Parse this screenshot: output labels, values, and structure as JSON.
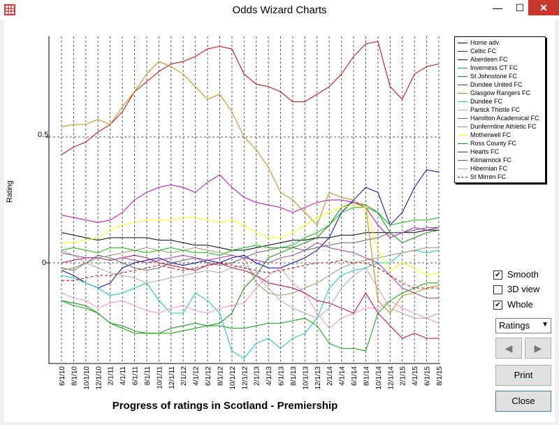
{
  "window": {
    "title": "Odds Wizard Charts",
    "min_glyph": "—",
    "max_glyph": "☐",
    "close_glyph": "✕"
  },
  "chart_data": {
    "type": "line",
    "title": "Progress of ratings in Scotland - Premiership",
    "ylabel": "Rating",
    "xlabel": "",
    "ylim": [
      -0.4,
      0.9
    ],
    "y_tick_labels": [
      "0.5",
      "0"
    ],
    "y_ticks": [
      0.5,
      0
    ],
    "x": [
      "6/1/10",
      "8/1/10",
      "10/1/10",
      "12/1/10",
      "2/1/11",
      "4/1/11",
      "6/1/11",
      "8/1/11",
      "10/1/11",
      "12/1/11",
      "2/1/12",
      "4/1/12",
      "6/1/12",
      "8/1/12",
      "10/1/12",
      "12/1/12",
      "2/1/13",
      "4/1/13",
      "6/1/13",
      "8/1/13",
      "10/1/13",
      "12/1/13",
      "2/1/14",
      "4/1/14",
      "6/1/14",
      "8/1/14",
      "10/1/14",
      "12/1/14",
      "2/1/15",
      "4/1/15",
      "6/1/15",
      "8/1/15"
    ],
    "grid": true,
    "legend_position": "top-right",
    "series": [
      {
        "name": "Home adv.",
        "color": "#000000",
        "dash": false,
        "values": [
          0.12,
          0.11,
          0.1,
          0.09,
          0.1,
          0.1,
          0.1,
          0.1,
          0.09,
          0.09,
          0.08,
          0.07,
          0.07,
          0.06,
          0.05,
          0.05,
          0.06,
          0.07,
          0.08,
          0.09,
          0.09,
          0.1,
          0.1,
          0.11,
          0.11,
          0.12,
          0.12,
          0.12,
          0.12,
          0.12,
          0.13,
          0.13
        ]
      },
      {
        "name": "Celtic FC",
        "color": "#cc0000",
        "dash": false,
        "values": [
          0.43,
          0.46,
          0.48,
          0.52,
          0.55,
          0.6,
          0.68,
          0.72,
          0.76,
          0.79,
          0.8,
          0.82,
          0.85,
          0.86,
          0.85,
          0.75,
          0.71,
          0.7,
          0.68,
          0.64,
          0.64,
          0.67,
          0.7,
          0.75,
          0.82,
          0.87,
          0.88,
          0.7,
          0.65,
          0.75,
          0.78,
          0.79
        ]
      },
      {
        "name": "Aberdeen FC",
        "color": "#0000cc",
        "dash": false,
        "values": [
          -0.03,
          -0.05,
          -0.08,
          -0.1,
          -0.08,
          -0.02,
          0.0,
          0.01,
          0.02,
          0.0,
          -0.01,
          0.0,
          0.01,
          0.0,
          0.02,
          0.03,
          0.0,
          -0.02,
          -0.02,
          0.0,
          0.02,
          0.05,
          0.1,
          0.2,
          0.25,
          0.3,
          0.28,
          0.15,
          0.2,
          0.3,
          0.37,
          0.36
        ]
      },
      {
        "name": "Inverness CT FC",
        "color": "#00cc00",
        "dash": false,
        "values": [
          0.05,
          0.06,
          0.05,
          0.04,
          0.06,
          0.06,
          0.05,
          0.04,
          0.05,
          0.06,
          0.05,
          0.04,
          0.04,
          0.03,
          0.05,
          0.06,
          0.07,
          0.06,
          0.06,
          0.07,
          0.1,
          0.12,
          0.15,
          0.2,
          0.22,
          0.22,
          0.2,
          0.15,
          0.16,
          0.17,
          0.17,
          0.18
        ]
      },
      {
        "name": "St Johnstone FC",
        "color": "#009900",
        "dash": false,
        "values": [
          -0.15,
          -0.16,
          -0.17,
          -0.2,
          -0.24,
          -0.26,
          -0.28,
          -0.28,
          -0.28,
          -0.26,
          -0.25,
          -0.24,
          -0.25,
          -0.24,
          -0.2,
          -0.1,
          -0.05,
          0.02,
          0.04,
          0.06,
          0.08,
          0.1,
          0.15,
          0.22,
          0.24,
          0.23,
          0.2,
          0.12,
          0.08,
          0.1,
          0.12,
          0.13
        ]
      },
      {
        "name": "Dundee United FC",
        "color": "#cc00cc",
        "dash": false,
        "values": [
          0.19,
          0.18,
          0.17,
          0.16,
          0.17,
          0.2,
          0.25,
          0.28,
          0.3,
          0.31,
          0.3,
          0.28,
          0.32,
          0.35,
          0.3,
          0.26,
          0.24,
          0.23,
          0.22,
          0.2,
          0.22,
          0.24,
          0.25,
          0.25,
          0.24,
          0.22,
          0.15,
          0.1,
          0.12,
          0.14,
          0.13,
          0.14
        ]
      },
      {
        "name": "Glasgow Rangers FC",
        "color": "#cc8800",
        "dash": false,
        "values": [
          0.54,
          0.55,
          0.55,
          0.57,
          0.55,
          0.62,
          0.68,
          0.75,
          0.8,
          0.78,
          0.75,
          0.7,
          0.65,
          0.67,
          0.6,
          0.5,
          0.45,
          0.38,
          0.28,
          0.25,
          0.2,
          0.15,
          0.28,
          0.26,
          0.25,
          0.22,
          -0.15,
          -0.2,
          -0.13,
          -0.12,
          -0.1,
          -0.09
        ]
      },
      {
        "name": "Dundee FC",
        "color": "#00cccc",
        "dash": false,
        "values": [
          -0.05,
          -0.06,
          -0.08,
          -0.1,
          -0.13,
          -0.12,
          -0.1,
          -0.08,
          -0.15,
          -0.2,
          -0.2,
          -0.12,
          -0.15,
          -0.2,
          -0.35,
          -0.38,
          -0.32,
          -0.3,
          -0.34,
          -0.3,
          -0.28,
          -0.22,
          -0.1,
          -0.05,
          -0.03,
          -0.02,
          0.0,
          0.0,
          0.04,
          0.05,
          0.04,
          0.05
        ]
      },
      {
        "name": "Partick Thistle FC",
        "color": "#ff88cc",
        "dash": false,
        "values": [
          -0.12,
          -0.14,
          -0.15,
          -0.18,
          -0.16,
          -0.15,
          -0.17,
          -0.19,
          -0.2,
          -0.18,
          -0.17,
          -0.19,
          -0.2,
          -0.18,
          -0.17,
          -0.16,
          -0.1,
          -0.05,
          -0.02,
          -0.08,
          -0.12,
          -0.2,
          -0.26,
          -0.22,
          -0.2,
          -0.18,
          -0.18,
          -0.15,
          -0.18,
          -0.2,
          -0.22,
          -0.24
        ]
      },
      {
        "name": "Hamilton Academical FC",
        "color": "#666666",
        "dash": false,
        "values": [
          -0.02,
          -0.03,
          0.0,
          0.03,
          0.02,
          0.0,
          -0.02,
          -0.03,
          -0.02,
          0.0,
          0.01,
          0.02,
          0.0,
          -0.01,
          0.0,
          0.02,
          0.04,
          0.05,
          0.06,
          0.06,
          0.05,
          0.06,
          0.07,
          0.08,
          0.08,
          0.09,
          0.1,
          0.12,
          0.12,
          0.13,
          0.14,
          0.14
        ]
      },
      {
        "name": "Dunfermline Athletic FC",
        "color": "#999966",
        "dash": false,
        "values": [
          -0.03,
          -0.02,
          0.0,
          0.02,
          0.03,
          0.04,
          0.05,
          0.06,
          0.05,
          0.04,
          0.05,
          0.06,
          0.05,
          0.04,
          0.03,
          0.02,
          -0.08,
          -0.12,
          -0.13,
          -0.12,
          -0.1,
          -0.08,
          -0.05,
          -0.02,
          0.0,
          0.01,
          0.02,
          0.03,
          0.04,
          0.05,
          0.06,
          0.06
        ]
      },
      {
        "name": "Motherwell FC",
        "color": "#ffff00",
        "dash": false,
        "values": [
          0.08,
          0.08,
          0.09,
          0.1,
          0.13,
          0.15,
          0.16,
          0.17,
          0.17,
          0.17,
          0.18,
          0.18,
          0.17,
          0.16,
          0.17,
          0.15,
          0.12,
          0.1,
          0.1,
          0.12,
          0.15,
          0.18,
          0.2,
          0.22,
          0.23,
          0.22,
          0.05,
          -0.03,
          0.0,
          -0.02,
          -0.05,
          -0.04
        ]
      },
      {
        "name": "Ross County FC",
        "color": "#00aa00",
        "dash": false,
        "values": [
          -0.15,
          -0.17,
          -0.18,
          -0.2,
          -0.24,
          -0.25,
          -0.27,
          -0.28,
          -0.28,
          -0.28,
          -0.27,
          -0.26,
          -0.25,
          -0.25,
          -0.26,
          -0.26,
          -0.25,
          -0.24,
          -0.24,
          -0.23,
          -0.22,
          -0.25,
          -0.32,
          -0.34,
          -0.34,
          -0.35,
          -0.2,
          -0.15,
          -0.12,
          -0.1,
          -0.08,
          -0.08
        ]
      },
      {
        "name": "Hearts FC",
        "color": "#cc0044",
        "dash": false,
        "values": [
          0.0,
          0.01,
          0.02,
          0.02,
          0.01,
          0.02,
          0.03,
          0.02,
          0.0,
          -0.01,
          -0.02,
          -0.03,
          -0.01,
          0.0,
          -0.02,
          -0.03,
          -0.05,
          -0.08,
          -0.09,
          -0.1,
          -0.12,
          -0.15,
          -0.16,
          -0.18,
          -0.2,
          -0.12,
          -0.2,
          -0.25,
          -0.3,
          -0.28,
          -0.3,
          -0.3
        ]
      },
      {
        "name": "Kilmarnock FC",
        "color": "#aa33aa",
        "dash": false,
        "values": [
          0.04,
          0.03,
          0.02,
          0.02,
          0.01,
          0.02,
          0.01,
          0.0,
          0.01,
          0.02,
          0.03,
          0.02,
          0.01,
          0.02,
          0.03,
          0.02,
          0.01,
          0.0,
          0.02,
          0.03,
          0.05,
          0.08,
          0.06,
          0.05,
          0.04,
          0.02,
          0.0,
          -0.05,
          -0.1,
          -0.12,
          -0.14,
          -0.14
        ]
      },
      {
        "name": "Hibernian FC",
        "color": "#aaaaaa",
        "dash": false,
        "values": [
          0.05,
          0.03,
          0.0,
          -0.02,
          -0.04,
          -0.05,
          -0.06,
          -0.08,
          -0.07,
          -0.06,
          -0.05,
          -0.04,
          -0.03,
          -0.04,
          -0.02,
          -0.01,
          -0.05,
          -0.1,
          -0.15,
          -0.18,
          -0.2,
          -0.22,
          -0.18,
          -0.1,
          -0.05,
          -0.02,
          -0.1,
          -0.18,
          -0.2,
          -0.22,
          -0.22,
          -0.2
        ]
      },
      {
        "name": "St Mirren FC",
        "color": "#cc0000",
        "dash": true,
        "values": [
          -0.07,
          -0.07,
          -0.06,
          -0.05,
          -0.05,
          -0.04,
          -0.03,
          -0.02,
          -0.01,
          -0.02,
          -0.03,
          -0.02,
          -0.01,
          0.0,
          -0.01,
          -0.02,
          -0.03,
          -0.04,
          -0.03,
          -0.02,
          -0.01,
          0.0,
          0.0,
          0.01,
          0.0,
          0.0,
          -0.02,
          -0.05,
          -0.08,
          -0.1,
          -0.1,
          -0.1
        ]
      }
    ]
  },
  "controls": {
    "smooth": {
      "label": "Smooth",
      "checked": true
    },
    "view3d": {
      "label": "3D view",
      "checked": false
    },
    "whole": {
      "label": "Whole",
      "checked": true
    },
    "check_glyph": "✔",
    "mode_select": "Ratings",
    "select_arrow": "▼",
    "prev_glyph": "◀",
    "next_glyph": "▶",
    "print_label": "Print",
    "close_label": "Close"
  }
}
